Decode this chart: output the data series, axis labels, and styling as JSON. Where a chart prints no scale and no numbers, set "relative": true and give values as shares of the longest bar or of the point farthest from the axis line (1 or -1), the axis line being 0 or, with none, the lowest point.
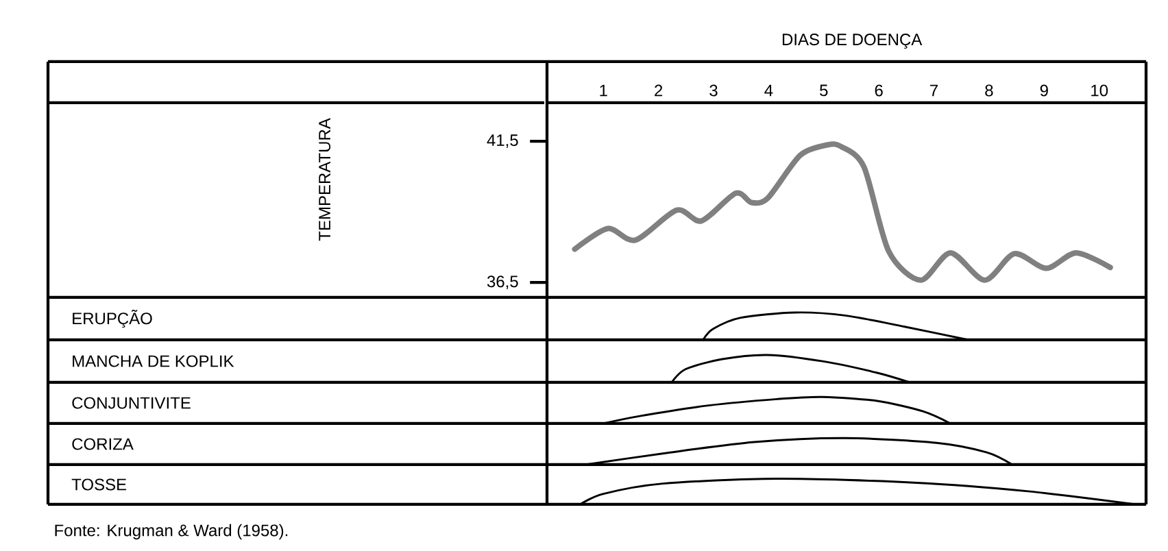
{
  "chart_data": [
    {
      "type": "line",
      "xlabel": "DIAS DE DOENÇA",
      "ylabel": "TEMPERATURA",
      "color": "#808080",
      "line_style": "solid",
      "marker": "none",
      "grid": false,
      "xlim": [
        -9.08,
        10.85
      ],
      "xticks": [
        1,
        2,
        3,
        4,
        5,
        6,
        7,
        8,
        9,
        10
      ],
      "ylim": [
        35.97,
        44.32
      ],
      "yticks": [
        {
          "value": 36.5,
          "label": "36,5"
        },
        {
          "value": 41.5,
          "label": "41,5"
        }
      ],
      "x": [
        0.48,
        1.08,
        1.58,
        2.33,
        2.78,
        3.4,
        3.69,
        3.99,
        4.57,
        5.06,
        5.31,
        5.73,
        6.18,
        6.76,
        7.3,
        7.92,
        8.46,
        9.04,
        9.58,
        10.2
      ],
      "values": [
        37.68,
        38.41,
        38.0,
        39.06,
        38.68,
        39.66,
        39.33,
        39.5,
        41.0,
        41.37,
        41.32,
        40.59,
        37.6,
        36.58,
        37.55,
        36.58,
        37.52,
        37.0,
        37.55,
        37.03
      ]
    },
    {
      "type": "line",
      "ylabel": "ERUPÇÃO",
      "relative": true,
      "color": "#000000",
      "xlim": [
        -9.08,
        10.85
      ],
      "x": [
        2.81,
        2.99,
        3.49,
        4.48,
        5.39,
        6.47,
        7.63
      ],
      "values": [
        0,
        0.4,
        0.81,
        1,
        0.89,
        0.48,
        0
      ]
    },
    {
      "type": "line",
      "ylabel": "MANCHA DE KOPLIK",
      "relative": true,
      "color": "#000000",
      "xlim": [
        -9.08,
        10.85
      ],
      "x": [
        2.24,
        2.49,
        3.16,
        3.98,
        4.98,
        5.97,
        6.56
      ],
      "values": [
        0,
        0.48,
        0.85,
        1,
        0.77,
        0.35,
        0
      ]
    },
    {
      "type": "line",
      "ylabel": "CONJUNTIVITE",
      "relative": true,
      "color": "#000000",
      "xlim": [
        -9.08,
        10.85
      ],
      "x": [
        1.0,
        1.66,
        2.91,
        4.15,
        4.98,
        5.97,
        6.8,
        7.3
      ],
      "values": [
        0,
        0.28,
        0.68,
        0.92,
        1,
        0.85,
        0.46,
        0
      ]
    },
    {
      "type": "line",
      "ylabel": "CORIZA",
      "relative": true,
      "color": "#000000",
      "xlim": [
        -9.08,
        10.85
      ],
      "x": [
        0.67,
        2.08,
        3.74,
        5.39,
        7.05,
        7.96,
        8.42
      ],
      "values": [
        0,
        0.42,
        0.85,
        1,
        0.82,
        0.46,
        0
      ]
    },
    {
      "type": "line",
      "ylabel": "TOSSE",
      "relative": true,
      "color": "#000000",
      "xlim": [
        -9.08,
        10.85
      ],
      "x": [
        0.58,
        1.0,
        2.08,
        4.15,
        6.63,
        8.71,
        10.66
      ],
      "values": [
        0,
        0.41,
        0.81,
        1,
        0.85,
        0.51,
        0
      ],
      "annotations": [
        "Fonte: Krugman & Ward (1958)."
      ]
    }
  ]
}
